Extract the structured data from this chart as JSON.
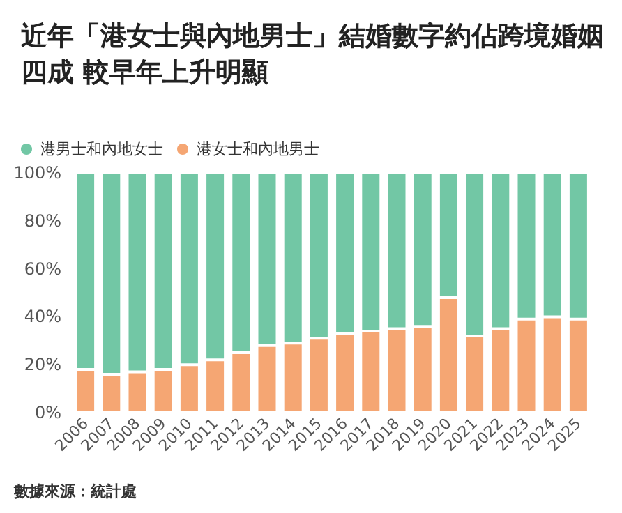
{
  "chart_data": {
    "type": "bar",
    "title": "近年「港女士與內地男士」結婚數字約佔跨境婚姻四成 較早年上升明顯",
    "categories": [
      "2006",
      "2007",
      "2008",
      "2009",
      "2010",
      "2011",
      "2012",
      "2013",
      "2014",
      "2015",
      "2016",
      "2017",
      "2018",
      "2019",
      "2020",
      "2021",
      "2022",
      "2023",
      "2024",
      "2025"
    ],
    "stacked": true,
    "series": [
      {
        "name": "港女士和內地男士",
        "color": "#f5a673",
        "values": [
          18,
          16,
          17,
          18,
          20,
          22,
          25,
          28,
          29,
          31,
          33,
          34,
          35,
          36,
          48,
          32,
          35,
          39,
          40,
          39
        ]
      },
      {
        "name": "港男士和內地女士",
        "color": "#72c7a5",
        "values": [
          82,
          84,
          83,
          82,
          80,
          78,
          75,
          72,
          71,
          69,
          67,
          66,
          65,
          64,
          52,
          68,
          65,
          61,
          60,
          61
        ]
      }
    ],
    "ylim": [
      0,
      100
    ],
    "yticks": [
      {
        "value": 0,
        "label": "0%"
      },
      {
        "value": 20,
        "label": "20%"
      },
      {
        "value": 40,
        "label": "40%"
      },
      {
        "value": 60,
        "label": "60%"
      },
      {
        "value": 80,
        "label": "80%"
      },
      {
        "value": 100,
        "label": "100%"
      }
    ],
    "grid": false,
    "legend": "top left",
    "annotations": [
      "數據來源：統計處"
    ]
  }
}
